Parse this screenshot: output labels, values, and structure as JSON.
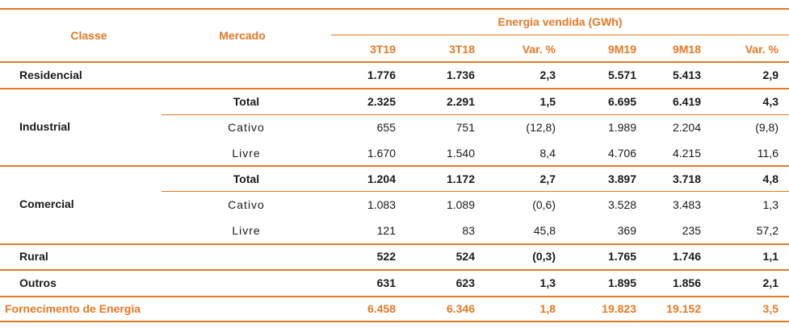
{
  "header": {
    "classe": "Classe",
    "mercado": "Mercado",
    "group": "Energia vendida (GWh)",
    "columns": [
      "3T19",
      "3T18",
      "Var. %",
      "9M19",
      "9M18",
      "Var. %"
    ]
  },
  "rows": {
    "residencial": {
      "classe": "Residencial",
      "values": [
        "1.776",
        "1.736",
        "2,3",
        "5.571",
        "5.413",
        "2,9"
      ]
    },
    "industrial": {
      "classe": "Industrial",
      "total": {
        "mercado": "Total",
        "values": [
          "2.325",
          "2.291",
          "1,5",
          "6.695",
          "6.419",
          "4,3"
        ]
      },
      "cativo": {
        "mercado": "Cativo",
        "values": [
          "655",
          "751",
          "(12,8)",
          "1.989",
          "2.204",
          "(9,8)"
        ]
      },
      "livre": {
        "mercado": "Livre",
        "values": [
          "1.670",
          "1.540",
          "8,4",
          "4.706",
          "4.215",
          "11,6"
        ]
      }
    },
    "comercial": {
      "classe": "Comercial",
      "total": {
        "mercado": "Total",
        "values": [
          "1.204",
          "1.172",
          "2,7",
          "3.897",
          "3.718",
          "4,8"
        ]
      },
      "cativo": {
        "mercado": "Cativo",
        "values": [
          "1.083",
          "1.089",
          "(0,6)",
          "3.528",
          "3.483",
          "1,3"
        ]
      },
      "livre": {
        "mercado": "Livre",
        "values": [
          "121",
          "83",
          "45,8",
          "369",
          "235",
          "57,2"
        ]
      }
    },
    "rural": {
      "classe": "Rural",
      "values": [
        "522",
        "524",
        "(0,3)",
        "1.765",
        "1.746",
        "1,1"
      ]
    },
    "outros": {
      "classe": "Outros",
      "values": [
        "631",
        "623",
        "1,3",
        "1.895",
        "1.856",
        "2,1"
      ]
    },
    "fornecimento": {
      "classe": "Fornecimento de Energia",
      "values": [
        "6.458",
        "6.346",
        "1,8",
        "19.823",
        "19.152",
        "3,5"
      ]
    }
  }
}
